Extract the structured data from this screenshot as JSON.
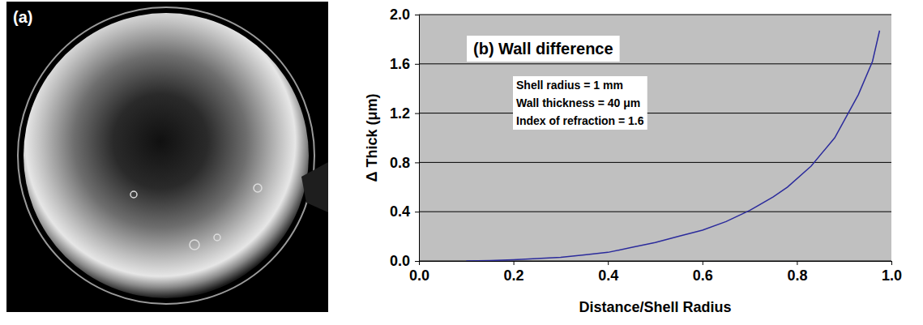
{
  "image_panel": {
    "label": "(a)"
  },
  "chart_data": {
    "type": "line",
    "title": "(b) Wall difference",
    "annotations": [
      "Shell radius = 1 mm",
      "Wall thickness = 40 μm",
      "Index of refraction = 1.6"
    ],
    "x_label": "Distance/Shell Radius",
    "y_label": "Δ Thick (μm)",
    "x": [
      0.1,
      0.15,
      0.2,
      0.25,
      0.3,
      0.35,
      0.4,
      0.45,
      0.5,
      0.55,
      0.6,
      0.65,
      0.7,
      0.75,
      0.78,
      0.83,
      0.88,
      0.93,
      0.96,
      0.975
    ],
    "values": [
      0,
      0.003,
      0.01,
      0.02,
      0.03,
      0.05,
      0.07,
      0.11,
      0.15,
      0.2,
      0.25,
      0.32,
      0.41,
      0.52,
      0.6,
      0.77,
      1.0,
      1.35,
      1.62,
      1.87
    ],
    "color": "#2b2b9c",
    "xlim": [
      0,
      1
    ],
    "xticks": [
      {
        "value": 0,
        "label": "0.0"
      },
      0.2,
      0.4,
      0.6,
      0.8,
      {
        "value": 1,
        "label": "1.0"
      }
    ],
    "ylim": [
      0,
      2
    ],
    "yticks": [
      {
        "value": 0,
        "label": "0.0"
      },
      0.4,
      0.8,
      1.2,
      1.6,
      {
        "value": 2,
        "label": "2.0"
      }
    ],
    "grid": true
  }
}
